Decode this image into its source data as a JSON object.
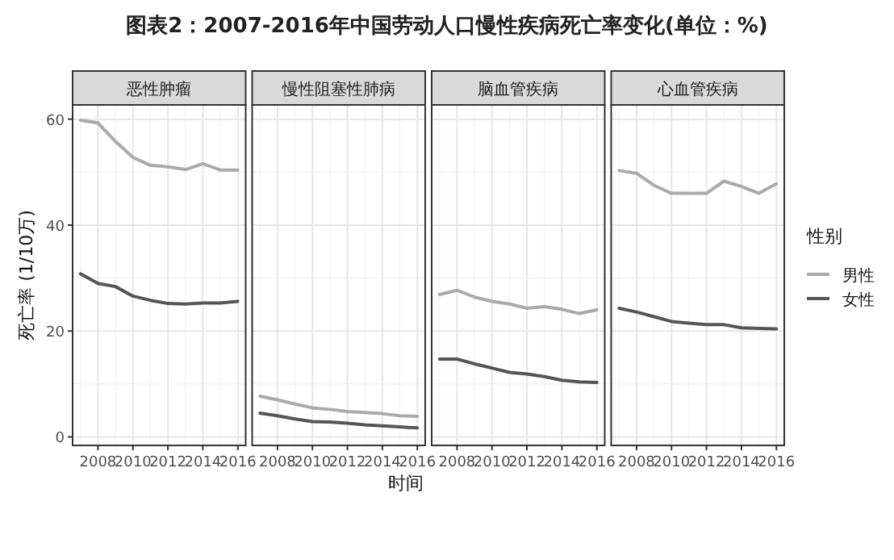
{
  "chart_data": [
    {
      "type": "line",
      "title": "图表2：2007-2016年中国劳动人口慢性疾病死亡率变化(单位：%)",
      "subtitle": "恶性肿瘤",
      "ylabel": "死亡率 (1/10万)",
      "x": [
        2007,
        2008,
        2009,
        2010,
        2011,
        2012,
        2013,
        2014,
        2015,
        2016
      ],
      "xlim": [
        2006.55,
        2016.45
      ],
      "xticks": [
        2008,
        2010,
        2012,
        2014,
        2016
      ],
      "ylim": [
        -1.6,
        62.7
      ],
      "yticks": [
        0,
        20,
        40,
        60
      ],
      "grid": true,
      "legend": false,
      "series": [
        {
          "color": "#aaaaaa",
          "values": [
            59.8,
            59.3,
            55.8,
            52.8,
            51.3,
            51.0,
            50.5,
            51.6,
            50.4,
            50.4
          ]
        },
        {
          "color": "#555555",
          "values": [
            30.8,
            29.0,
            28.4,
            26.6,
            25.8,
            25.2,
            25.1,
            25.3,
            25.3,
            25.6
          ]
        }
      ]
    },
    {
      "type": "line",
      "subtitle": "慢性阻塞性肺病",
      "xlabel": "时间",
      "x": [
        2007,
        2008,
        2009,
        2010,
        2011,
        2012,
        2013,
        2014,
        2015,
        2016
      ],
      "xlim": [
        2006.55,
        2016.45
      ],
      "xticks": [
        2008,
        2010,
        2012,
        2014,
        2016
      ],
      "ylim": [
        -1.6,
        62.7
      ],
      "yticks": [
        0,
        20,
        40,
        60
      ],
      "grid": true,
      "legend": false,
      "tick_labels": "x",
      "series": [
        {
          "color": "#aaaaaa",
          "values": [
            7.7,
            7.0,
            6.2,
            5.5,
            5.2,
            4.8,
            4.6,
            4.4,
            4.0,
            3.9
          ]
        },
        {
          "color": "#555555",
          "values": [
            4.5,
            4.0,
            3.4,
            2.9,
            2.8,
            2.6,
            2.3,
            2.1,
            1.9,
            1.7
          ]
        }
      ]
    },
    {
      "type": "line",
      "subtitle": "脑血管疾病",
      "x": [
        2007,
        2008,
        2009,
        2010,
        2011,
        2012,
        2013,
        2014,
        2015,
        2016
      ],
      "xlim": [
        2006.55,
        2016.45
      ],
      "xticks": [
        2008,
        2010,
        2012,
        2014,
        2016
      ],
      "ylim": [
        -1.6,
        62.7
      ],
      "yticks": [
        0,
        20,
        40,
        60
      ],
      "grid": true,
      "legend": false,
      "tick_labels": "x",
      "series": [
        {
          "color": "#aaaaaa",
          "values": [
            26.9,
            27.7,
            26.4,
            25.6,
            25.1,
            24.3,
            24.6,
            24.1,
            23.3,
            24.0
          ]
        },
        {
          "color": "#555555",
          "values": [
            14.7,
            14.7,
            13.8,
            13.0,
            12.2,
            11.9,
            11.4,
            10.7,
            10.4,
            10.3
          ]
        }
      ]
    },
    {
      "type": "line",
      "subtitle": "心血管疾病",
      "legend_title": "性别",
      "x": [
        2007,
        2008,
        2009,
        2010,
        2011,
        2012,
        2013,
        2014,
        2015,
        2016
      ],
      "xlim": [
        2006.55,
        2016.45
      ],
      "xticks": [
        2008,
        2010,
        2012,
        2014,
        2016
      ],
      "ylim": [
        -1.6,
        62.7
      ],
      "yticks": [
        0,
        20,
        40,
        60
      ],
      "grid": true,
      "legend": "right",
      "tick_labels": "x",
      "series": [
        {
          "name": "男性",
          "color": "#aaaaaa",
          "values": [
            50.3,
            49.8,
            47.5,
            46.0,
            46.0,
            46.0,
            48.3,
            47.3,
            46.0,
            47.8
          ]
        },
        {
          "name": "女性",
          "color": "#555555",
          "values": [
            24.3,
            23.6,
            22.7,
            21.8,
            21.5,
            21.2,
            21.2,
            20.6,
            20.5,
            20.4
          ]
        }
      ]
    }
  ]
}
